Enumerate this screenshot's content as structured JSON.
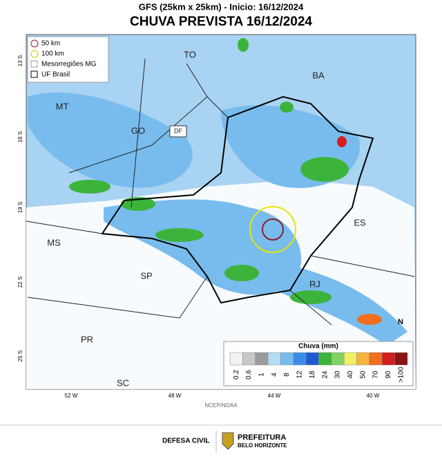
{
  "header": {
    "subtitle": "GFS (25km x 25km) - Inicio: 16/12/2024",
    "title": "CHUVA PREVISTA 16/12/2024"
  },
  "map": {
    "lat_labels": [
      "13 S",
      "16 S",
      "19 S",
      "22 S",
      "25 S"
    ],
    "lon_labels": [
      "52 W",
      "48 W",
      "44 W",
      "40 W"
    ],
    "regions": [
      "TO",
      "BA",
      "MT",
      "GO",
      "DF",
      "MS",
      "ES",
      "SP",
      "RJ",
      "PR",
      "SC"
    ],
    "north": "N",
    "credit": "NCEP/NOAA"
  },
  "key": {
    "items": [
      "50 km",
      "100 km",
      "Mesorregiões MG",
      "UF Brasil"
    ]
  },
  "legend": {
    "title": "Chuva (mm)",
    "labels": [
      "0.2",
      "0.6",
      "1",
      "4",
      "8",
      "12",
      "18",
      "24",
      "30",
      "40",
      "50",
      "70",
      "90",
      ">100"
    ],
    "colors": [
      "#f2f2f2",
      "#c8c8c8",
      "#9a9a9a",
      "#b4dcf5",
      "#78bcee",
      "#3c8ce6",
      "#1e5ad2",
      "#3cb43c",
      "#82d264",
      "#f0f064",
      "#f5b43c",
      "#f06e1e",
      "#d21e1e",
      "#8c1414"
    ]
  },
  "footer": {
    "agency": "DEFESA CIVIL",
    "org": "PREFEITURA",
    "city": "BELO HORIZONTE"
  }
}
